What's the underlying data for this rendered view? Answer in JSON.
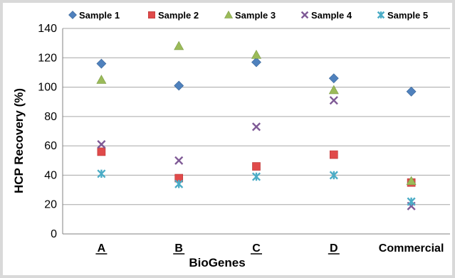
{
  "chart_data": {
    "type": "scatter",
    "xlabel": "BioGenes",
    "ylabel": "HCP Recovery (%)",
    "categories": [
      "A",
      "B",
      "C",
      "D",
      "Commercial"
    ],
    "underlined_categories": [
      "A",
      "B",
      "C",
      "D"
    ],
    "ylim": [
      0,
      140
    ],
    "yticks": [
      "0",
      "20",
      "40",
      "60",
      "80",
      "100",
      "120",
      "140"
    ],
    "grid": "horizontal",
    "legend_position": "top",
    "series": [
      {
        "name": "Sample 1",
        "marker": "diamond",
        "color": "#4f81bd",
        "values": [
          116,
          101,
          117,
          106,
          97
        ]
      },
      {
        "name": "Sample 2",
        "marker": "square",
        "color": "#e04a4a",
        "values": [
          56,
          38,
          46,
          54,
          35
        ]
      },
      {
        "name": "Sample 3",
        "marker": "triangle",
        "color": "#9bbb59",
        "values": [
          105,
          128,
          122,
          98,
          36
        ]
      },
      {
        "name": "Sample 4",
        "marker": "x",
        "color": "#7f5a96",
        "values": [
          61,
          50,
          73,
          91,
          19
        ]
      },
      {
        "name": "Sample 5",
        "marker": "star",
        "color": "#4bacc6",
        "values": [
          41,
          34,
          39,
          40,
          22
        ]
      }
    ]
  }
}
